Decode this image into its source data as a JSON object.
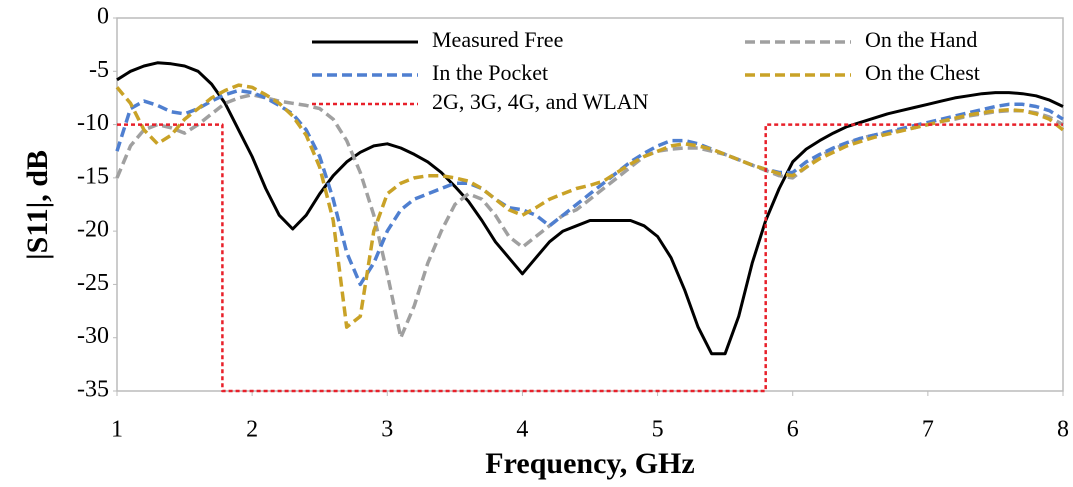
{
  "chart_data": {
    "type": "line",
    "xlabel": "Frequency, GHz",
    "ylabel": "|S11|, dB",
    "xlim": [
      1,
      8
    ],
    "ylim": [
      -35,
      0
    ],
    "xticks": [
      1,
      2,
      3,
      4,
      5,
      6,
      7,
      8
    ],
    "yticks": [
      0,
      -5,
      -10,
      -15,
      -20,
      -25,
      -30,
      -35
    ],
    "x": [
      1.0,
      1.1,
      1.2,
      1.3,
      1.4,
      1.5,
      1.6,
      1.7,
      1.8,
      1.9,
      2.0,
      2.1,
      2.2,
      2.3,
      2.4,
      2.5,
      2.6,
      2.7,
      2.8,
      2.9,
      3.0,
      3.1,
      3.2,
      3.3,
      3.4,
      3.5,
      3.6,
      3.7,
      3.8,
      3.9,
      4.0,
      4.1,
      4.2,
      4.3,
      4.4,
      4.5,
      4.6,
      4.7,
      4.8,
      4.9,
      5.0,
      5.1,
      5.2,
      5.3,
      5.4,
      5.5,
      5.6,
      5.7,
      5.8,
      5.9,
      6.0,
      6.1,
      6.2,
      6.3,
      6.4,
      6.5,
      6.6,
      6.7,
      6.8,
      6.9,
      7.0,
      7.1,
      7.2,
      7.3,
      7.4,
      7.5,
      7.6,
      7.7,
      7.8,
      7.9,
      8.0
    ],
    "series": [
      {
        "name": "Measured Free",
        "color": "#000000",
        "dash": "solid",
        "values": [
          -5.8,
          -5,
          -4.5,
          -4.2,
          -4.3,
          -4.5,
          -5,
          -6.2,
          -8,
          -10.5,
          -13,
          -16,
          -18.5,
          -19.8,
          -18.5,
          -16.5,
          -14.8,
          -13.5,
          -12.6,
          -12,
          -11.8,
          -12.2,
          -12.8,
          -13.5,
          -14.5,
          -15.8,
          -17.2,
          -19,
          -21,
          -22.5,
          -24,
          -22.5,
          -21,
          -20,
          -19.5,
          -19,
          -19,
          -19,
          -19,
          -19.5,
          -20.5,
          -22.5,
          -25.5,
          -29,
          -31.5,
          -31.5,
          -28,
          -23,
          -19,
          -16,
          -13.5,
          -12.3,
          -11.5,
          -10.8,
          -10.2,
          -9.8,
          -9.4,
          -9,
          -8.7,
          -8.4,
          -8.1,
          -7.8,
          -7.5,
          -7.3,
          -7.1,
          -7,
          -7,
          -7.1,
          -7.3,
          -7.7,
          -8.3
        ]
      },
      {
        "name": "On the Hand",
        "color": "#a0a0a0",
        "dash": "dashed",
        "values": [
          -15,
          -12,
          -10.5,
          -10,
          -10.3,
          -10.8,
          -10,
          -9,
          -8,
          -7.5,
          -7.2,
          -7.5,
          -7.8,
          -8,
          -8.2,
          -8.5,
          -9.5,
          -11.5,
          -14.5,
          -18.5,
          -24,
          -30,
          -27,
          -23,
          -20,
          -17.5,
          -16.5,
          -17,
          -18.5,
          -20.5,
          -21.5,
          -20.5,
          -19.5,
          -18.5,
          -18,
          -17,
          -16,
          -15,
          -14,
          -13,
          -12.5,
          -12.3,
          -12.2,
          -12.2,
          -12.5,
          -12.8,
          -13.3,
          -13.8,
          -14.3,
          -14.8,
          -15,
          -14,
          -13,
          -12.3,
          -11.8,
          -11.3,
          -11,
          -10.8,
          -10.5,
          -10.3,
          -10,
          -9.7,
          -9.5,
          -9.2,
          -9,
          -8.8,
          -8.7,
          -8.7,
          -8.9,
          -9.3,
          -10
        ]
      },
      {
        "name": "In the Pocket",
        "color": "#4f7fd0",
        "dash": "dashed",
        "values": [
          -12.5,
          -8.5,
          -7.8,
          -8.2,
          -8.8,
          -9,
          -8.5,
          -7.8,
          -7.2,
          -6.8,
          -7,
          -7.5,
          -8.2,
          -9,
          -10.5,
          -13,
          -17,
          -22,
          -25,
          -23,
          -20,
          -18,
          -17,
          -16.5,
          -16,
          -15.5,
          -15.5,
          -16,
          -17,
          -17.8,
          -18,
          -18.5,
          -19.5,
          -18.5,
          -17.5,
          -16.5,
          -15.5,
          -14.5,
          -13.5,
          -12.7,
          -12,
          -11.5,
          -11.5,
          -11.8,
          -12.3,
          -12.8,
          -13.3,
          -13.8,
          -14.2,
          -14.5,
          -14.5,
          -13.5,
          -12.8,
          -12.2,
          -11.7,
          -11.3,
          -11,
          -10.7,
          -10.4,
          -10.1,
          -9.8,
          -9.5,
          -9.2,
          -8.9,
          -8.6,
          -8.3,
          -8.1,
          -8.1,
          -8.3,
          -8.7,
          -9.5
        ]
      },
      {
        "name": "On the Chest",
        "color": "#c9a227",
        "dash": "dashed",
        "values": [
          -6.5,
          -8,
          -10.5,
          -11.8,
          -11,
          -9.5,
          -8.5,
          -7.5,
          -6.8,
          -6.3,
          -6.5,
          -7.2,
          -8,
          -9.2,
          -11,
          -14,
          -19,
          -29,
          -28,
          -20,
          -16.5,
          -15.5,
          -15,
          -14.8,
          -14.8,
          -15,
          -15.3,
          -16,
          -17,
          -18,
          -18.5,
          -17.8,
          -17,
          -16.5,
          -16,
          -15.7,
          -15.3,
          -14.5,
          -13.7,
          -13,
          -12.5,
          -12,
          -11.8,
          -12,
          -12.3,
          -12.8,
          -13.3,
          -13.8,
          -14.2,
          -14.6,
          -14.8,
          -14,
          -13.2,
          -12.6,
          -12,
          -11.6,
          -11.2,
          -10.9,
          -10.6,
          -10.3,
          -10,
          -9.7,
          -9.4,
          -9.1,
          -8.9,
          -8.7,
          -8.6,
          -8.7,
          -9,
          -9.5,
          -10.5
        ]
      },
      {
        "name": "2G, 3G, 4G, and WLAN",
        "color": "#e8202a",
        "dash": "dotted",
        "x": [
          1,
          1.78,
          1.78,
          5.8,
          5.8,
          8
        ],
        "values": [
          -10,
          -10,
          -35,
          -35,
          -10,
          -10
        ]
      }
    ]
  }
}
